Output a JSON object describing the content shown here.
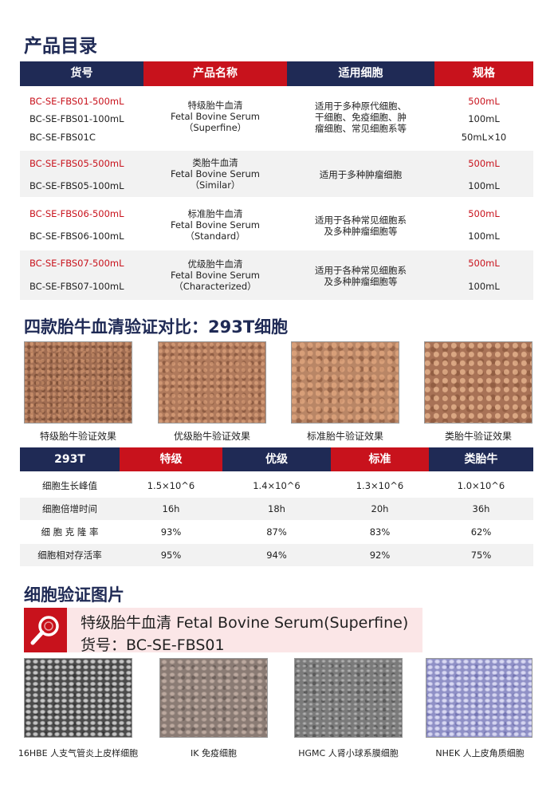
{
  "catalog": {
    "title": "产品目录",
    "headers": [
      "货号",
      "产品名称",
      "适用细胞",
      "规格"
    ],
    "groups": [
      {
        "codes": [
          "BC-SE-FBS01-500mL",
          "BC-SE-FBS01-100mL",
          "BC-SE-FBS01C"
        ],
        "name": [
          "特级胎牛血清",
          "Fetal Bovine Serum",
          "（Superfine）"
        ],
        "cells": [
          "适用于多种原代细胞、",
          "干细胞、免疫细胞、肿",
          "瘤细胞、常见细胞系等"
        ],
        "specs": [
          "500mL",
          "100mL",
          "50mL×10"
        ]
      },
      {
        "codes": [
          "BC-SE-FBS05-500mL",
          "BC-SE-FBS05-100mL"
        ],
        "name": [
          "类胎牛血清",
          "Fetal Bovine Serum",
          "（Similar）"
        ],
        "cells": [
          "适用于多种肿瘤细胞"
        ],
        "specs": [
          "500mL",
          "100mL"
        ]
      },
      {
        "codes": [
          "BC-SE-FBS06-500mL",
          "BC-SE-FBS06-100mL"
        ],
        "name": [
          "标准胎牛血清",
          "Fetal Bovine Serum",
          "（Standard）"
        ],
        "cells": [
          "适用于各种常见细胞系",
          "及多种肿瘤细胞等"
        ],
        "specs": [
          "500mL",
          "100mL"
        ]
      },
      {
        "codes": [
          "BC-SE-FBS07-500mL",
          "BC-SE-FBS07-100mL"
        ],
        "name": [
          "优级胎牛血清",
          "Fetal Bovine Serum",
          "（Characterized）"
        ],
        "cells": [
          "适用于各种常见细胞系",
          "及多种肿瘤细胞等"
        ],
        "specs": [
          "500mL",
          "100mL"
        ]
      }
    ]
  },
  "comparison": {
    "title": "四款胎牛血清验证对比：293T细胞",
    "images": [
      "特级胎牛验证效果",
      "优级胎牛验证效果",
      "标准胎牛验证效果",
      "类胎牛验证效果"
    ],
    "headers": [
      "293T",
      "特级",
      "优级",
      "标准",
      "类胎牛"
    ],
    "rows": [
      [
        "细胞生长峰值",
        "1.5×10^6",
        "1.4×10^6",
        "1.3×10^6",
        "1.0×10^6"
      ],
      [
        "细胞倍增时间",
        "16h",
        "18h",
        "20h",
        "36h"
      ],
      [
        "细 胞 克 隆 率",
        "93%",
        "87%",
        "83%",
        "62%"
      ],
      [
        "细胞相对存活率",
        "95%",
        "94%",
        "92%",
        "75%"
      ]
    ]
  },
  "verification": {
    "title": "细胞验证图片",
    "product_line": "特级胎牛血清  Fetal Bovine Serum(Superfine)",
    "code_line": "货号：BC-SE-FBS01",
    "icon": "search-icon",
    "images": [
      "16HBE 人支气管炎上皮样细胞",
      "IK  免疫细胞",
      "HGMC 人肾小球系膜细胞",
      "NHEK 人上皮角质细胞"
    ]
  },
  "colors": {
    "navy": "#1f2a55",
    "red": "#c8121c",
    "banner_bg": "#fbe6e7",
    "row_shade": "#f2f2f2"
  }
}
